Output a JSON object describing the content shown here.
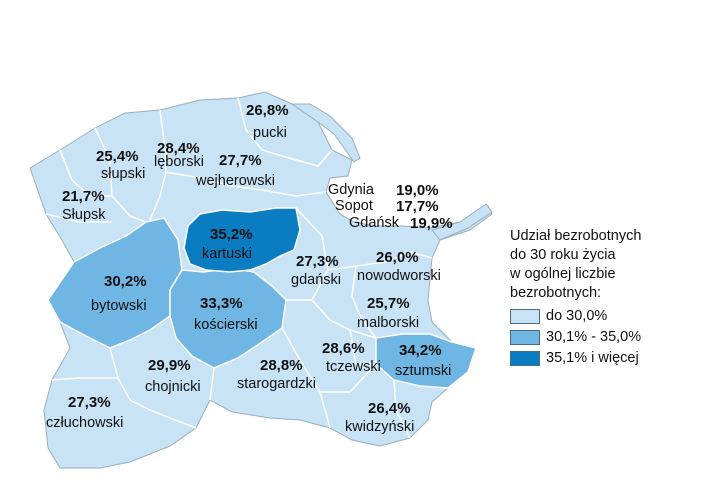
{
  "colors": {
    "low": "#c8e3f6",
    "mid": "#6fb6e4",
    "high": "#0a7dc2",
    "border": "#9aaebd"
  },
  "regions": [
    {
      "name": "pucki",
      "value": "26,8%",
      "class": "low"
    },
    {
      "name": "lęborski",
      "value": "28,4%",
      "class": "low"
    },
    {
      "name": "wejherowski",
      "value": "27,7%",
      "class": "low"
    },
    {
      "name": "słupski",
      "value": "25,4%",
      "class": "low"
    },
    {
      "name": "Słupsk",
      "value": "21,7%",
      "class": "low"
    },
    {
      "name": "kartuski",
      "value": "35,2%",
      "class": "high"
    },
    {
      "name": "bytowski",
      "value": "30,2%",
      "class": "mid"
    },
    {
      "name": "kościerski",
      "value": "33,3%",
      "class": "mid"
    },
    {
      "name": "gdański",
      "value": "27,3%",
      "class": "low"
    },
    {
      "name": "nowodworski",
      "value": "26,0%",
      "class": "low"
    },
    {
      "name": "malborski",
      "value": "25,7%",
      "class": "low"
    },
    {
      "name": "chojnicki",
      "value": "29,9%",
      "class": "low"
    },
    {
      "name": "starogardzki",
      "value": "28,8%",
      "class": "low"
    },
    {
      "name": "tczewski",
      "value": "28,6%",
      "class": "low"
    },
    {
      "name": "sztumski",
      "value": "34,2%",
      "class": "mid"
    },
    {
      "name": "człuchowski",
      "value": "27,3%",
      "class": "low"
    },
    {
      "name": "kwidzyński",
      "value": "26,4%",
      "class": "low"
    },
    {
      "name": "Gdynia",
      "value": "19,0%",
      "class": "low"
    },
    {
      "name": "Sopot",
      "value": "17,7%",
      "class": "low"
    },
    {
      "name": "Gdańsk",
      "value": "19,9%",
      "class": "low"
    }
  ],
  "legend": {
    "title_lines": [
      "Udział bezrobotnych",
      "do 30 roku życia",
      "w ogólnej liczbie",
      "bezrobotnych:"
    ],
    "items": [
      {
        "label": "do 30,0%",
        "class": "low"
      },
      {
        "label": "30,1% - 35,0%",
        "class": "mid"
      },
      {
        "label": "35,1% i więcej",
        "class": "high"
      }
    ]
  }
}
